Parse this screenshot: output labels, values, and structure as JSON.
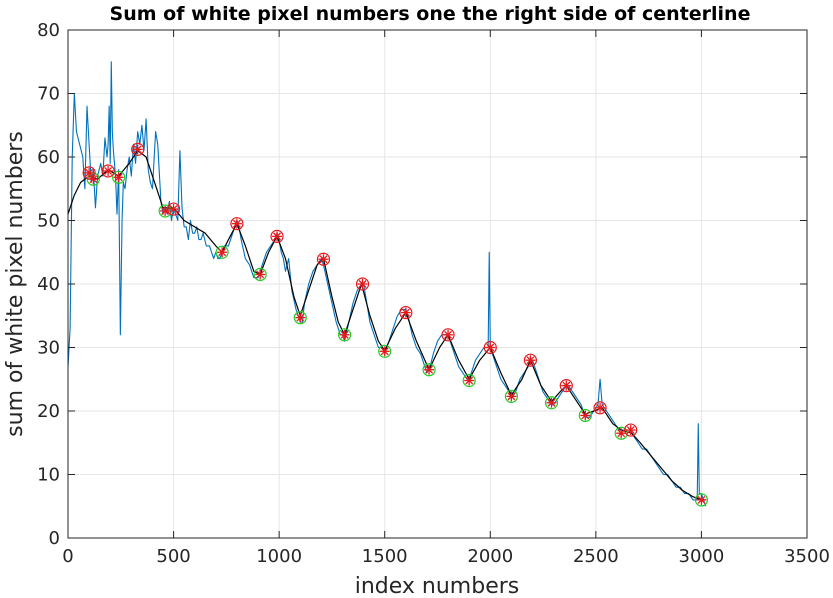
{
  "chart_data": {
    "type": "line",
    "title": "Sum of white pixel numbers one the right side of centerline",
    "xlabel": "index numbers",
    "ylabel": "sum of white pixel numbers",
    "xlim": [
      0,
      3500
    ],
    "ylim": [
      0,
      80
    ],
    "xticks": [
      0,
      500,
      1000,
      1500,
      2000,
      2500,
      3000,
      3500
    ],
    "yticks": [
      0,
      10,
      20,
      30,
      40,
      50,
      60,
      70,
      80
    ],
    "grid": true,
    "colors": {
      "raw": "#0072BD",
      "smooth": "#000000",
      "peak_circle": "#E41A1C",
      "peak_star": "#E41A1C",
      "valley_circle": "#22CC22",
      "valley_star": "#E41A1C"
    },
    "series": [
      {
        "role": "raw",
        "points": [
          [
            0,
            27
          ],
          [
            10,
            33
          ],
          [
            20,
            60
          ],
          [
            30,
            70
          ],
          [
            40,
            64
          ],
          [
            55,
            62
          ],
          [
            70,
            60
          ],
          [
            80,
            55
          ],
          [
            90,
            68
          ],
          [
            100,
            62
          ],
          [
            110,
            56
          ],
          [
            120,
            58
          ],
          [
            130,
            52
          ],
          [
            140,
            57
          ],
          [
            155,
            59
          ],
          [
            165,
            57
          ],
          [
            175,
            63
          ],
          [
            185,
            60
          ],
          [
            190,
            62
          ],
          [
            195,
            68
          ],
          [
            200,
            59
          ],
          [
            205,
            75
          ],
          [
            210,
            64
          ],
          [
            215,
            61
          ],
          [
            225,
            57
          ],
          [
            232,
            51
          ],
          [
            240,
            58
          ],
          [
            248,
            32
          ],
          [
            256,
            50
          ],
          [
            262,
            56
          ],
          [
            270,
            55
          ],
          [
            280,
            58
          ],
          [
            290,
            60
          ],
          [
            300,
            57
          ],
          [
            310,
            62
          ],
          [
            320,
            59
          ],
          [
            330,
            64
          ],
          [
            340,
            62
          ],
          [
            350,
            65
          ],
          [
            360,
            61
          ],
          [
            370,
            66
          ],
          [
            380,
            58
          ],
          [
            390,
            56
          ],
          [
            400,
            55
          ],
          [
            415,
            64
          ],
          [
            425,
            62
          ],
          [
            440,
            53
          ],
          [
            450,
            51
          ],
          [
            460,
            52
          ],
          [
            470,
            51
          ],
          [
            480,
            53
          ],
          [
            490,
            50
          ],
          [
            500,
            52
          ],
          [
            510,
            51
          ],
          [
            520,
            50
          ],
          [
            530,
            61
          ],
          [
            540,
            52
          ],
          [
            550,
            49
          ],
          [
            560,
            49
          ],
          [
            570,
            47
          ],
          [
            580,
            50
          ],
          [
            590,
            48
          ],
          [
            600,
            48
          ],
          [
            610,
            49
          ],
          [
            620,
            47
          ],
          [
            630,
            47
          ],
          [
            640,
            48
          ],
          [
            655,
            46
          ],
          [
            670,
            46
          ],
          [
            680,
            45
          ],
          [
            690,
            44
          ],
          [
            700,
            45
          ],
          [
            710,
            44
          ],
          [
            720,
            44
          ],
          [
            740,
            46
          ],
          [
            760,
            46
          ],
          [
            780,
            48
          ],
          [
            800,
            50
          ],
          [
            810,
            49
          ],
          [
            820,
            47
          ],
          [
            840,
            44
          ],
          [
            860,
            43
          ],
          [
            880,
            41
          ],
          [
            900,
            41
          ],
          [
            920,
            43
          ],
          [
            940,
            45
          ],
          [
            960,
            46
          ],
          [
            980,
            47
          ],
          [
            990,
            48
          ],
          [
            1000,
            47
          ],
          [
            1010,
            45
          ],
          [
            1020,
            44
          ],
          [
            1030,
            42
          ],
          [
            1045,
            44
          ],
          [
            1060,
            39
          ],
          [
            1080,
            36
          ],
          [
            1100,
            34
          ],
          [
            1110,
            34
          ],
          [
            1120,
            37
          ],
          [
            1140,
            40
          ],
          [
            1160,
            42
          ],
          [
            1180,
            43
          ],
          [
            1200,
            44
          ],
          [
            1210,
            43
          ],
          [
            1230,
            40
          ],
          [
            1250,
            37
          ],
          [
            1270,
            34
          ],
          [
            1290,
            32
          ],
          [
            1300,
            32
          ],
          [
            1310,
            31
          ],
          [
            1330,
            34
          ],
          [
            1350,
            37
          ],
          [
            1370,
            39
          ],
          [
            1390,
            40
          ],
          [
            1400,
            40
          ],
          [
            1410,
            38
          ],
          [
            1430,
            34
          ],
          [
            1450,
            32
          ],
          [
            1470,
            30
          ],
          [
            1490,
            30
          ],
          [
            1500,
            29
          ],
          [
            1520,
            31
          ],
          [
            1540,
            33
          ],
          [
            1560,
            35
          ],
          [
            1580,
            36
          ],
          [
            1600,
            36
          ],
          [
            1610,
            35
          ],
          [
            1630,
            32
          ],
          [
            1650,
            30
          ],
          [
            1670,
            29
          ],
          [
            1690,
            27
          ],
          [
            1700,
            26
          ],
          [
            1715,
            27
          ],
          [
            1730,
            29
          ],
          [
            1750,
            31
          ],
          [
            1770,
            32
          ],
          [
            1790,
            32
          ],
          [
            1800,
            32
          ],
          [
            1810,
            31
          ],
          [
            1830,
            29
          ],
          [
            1850,
            27
          ],
          [
            1870,
            26
          ],
          [
            1890,
            25
          ],
          [
            1900,
            25
          ],
          [
            1910,
            26
          ],
          [
            1930,
            28
          ],
          [
            1950,
            29
          ],
          [
            1970,
            30
          ],
          [
            1990,
            30
          ],
          [
            1995,
            45
          ],
          [
            2000,
            30
          ],
          [
            2010,
            29
          ],
          [
            2030,
            27
          ],
          [
            2050,
            25
          ],
          [
            2070,
            24
          ],
          [
            2090,
            23
          ],
          [
            2100,
            22
          ],
          [
            2120,
            23
          ],
          [
            2140,
            25
          ],
          [
            2160,
            26
          ],
          [
            2180,
            27
          ],
          [
            2190,
            28
          ],
          [
            2200,
            28
          ],
          [
            2210,
            27
          ],
          [
            2230,
            25
          ],
          [
            2250,
            23
          ],
          [
            2270,
            22
          ],
          [
            2290,
            21
          ],
          [
            2300,
            21
          ],
          [
            2320,
            22
          ],
          [
            2340,
            23
          ],
          [
            2360,
            24
          ],
          [
            2370,
            24
          ],
          [
            2390,
            23
          ],
          [
            2410,
            22
          ],
          [
            2430,
            21
          ],
          [
            2450,
            19
          ],
          [
            2470,
            19
          ],
          [
            2490,
            20
          ],
          [
            2510,
            21
          ],
          [
            2520,
            25
          ],
          [
            2530,
            21
          ],
          [
            2550,
            20
          ],
          [
            2570,
            19
          ],
          [
            2590,
            18
          ],
          [
            2610,
            17
          ],
          [
            2620,
            17
          ],
          [
            2640,
            17
          ],
          [
            2660,
            17
          ],
          [
            2680,
            16
          ],
          [
            2700,
            15
          ],
          [
            2720,
            14
          ],
          [
            2740,
            14
          ],
          [
            2760,
            13
          ],
          [
            2780,
            12
          ],
          [
            2800,
            11
          ],
          [
            2820,
            10
          ],
          [
            2840,
            10
          ],
          [
            2860,
            9
          ],
          [
            2880,
            8
          ],
          [
            2900,
            8
          ],
          [
            2920,
            7
          ],
          [
            2940,
            7
          ],
          [
            2960,
            6
          ],
          [
            2980,
            6
          ],
          [
            2985,
            18
          ],
          [
            2990,
            7
          ],
          [
            3000,
            7
          ],
          [
            3010,
            6
          ],
          [
            3020,
            5
          ]
        ]
      },
      {
        "role": "smooth",
        "points": [
          [
            0,
            51
          ],
          [
            30,
            54
          ],
          [
            60,
            56
          ],
          [
            100,
            57
          ],
          [
            140,
            56.5
          ],
          [
            190,
            58
          ],
          [
            240,
            57
          ],
          [
            290,
            59
          ],
          [
            330,
            61
          ],
          [
            370,
            60
          ],
          [
            410,
            56
          ],
          [
            450,
            52
          ],
          [
            500,
            52
          ],
          [
            550,
            50
          ],
          [
            600,
            49
          ],
          [
            650,
            48
          ],
          [
            700,
            46
          ],
          [
            730,
            45
          ],
          [
            760,
            47
          ],
          [
            800,
            49.5
          ],
          [
            840,
            46
          ],
          [
            880,
            42
          ],
          [
            910,
            41.5
          ],
          [
            950,
            45
          ],
          [
            990,
            47.5
          ],
          [
            1030,
            44
          ],
          [
            1070,
            38
          ],
          [
            1100,
            35
          ],
          [
            1140,
            39
          ],
          [
            1180,
            43
          ],
          [
            1210,
            44
          ],
          [
            1250,
            38
          ],
          [
            1280,
            34
          ],
          [
            1310,
            32
          ],
          [
            1350,
            36
          ],
          [
            1390,
            40
          ],
          [
            1430,
            35
          ],
          [
            1470,
            31
          ],
          [
            1500,
            29.5
          ],
          [
            1550,
            33
          ],
          [
            1600,
            35.5
          ],
          [
            1650,
            31
          ],
          [
            1710,
            26.5
          ],
          [
            1760,
            30
          ],
          [
            1800,
            32
          ],
          [
            1850,
            28
          ],
          [
            1900,
            25
          ],
          [
            1950,
            28
          ],
          [
            2000,
            30
          ],
          [
            2050,
            26
          ],
          [
            2100,
            22.5
          ],
          [
            2150,
            25
          ],
          [
            2190,
            28
          ],
          [
            2240,
            24
          ],
          [
            2290,
            21.5
          ],
          [
            2330,
            23
          ],
          [
            2360,
            24
          ],
          [
            2400,
            22
          ],
          [
            2450,
            19.5
          ],
          [
            2490,
            20
          ],
          [
            2530,
            20.5
          ],
          [
            2580,
            18
          ],
          [
            2620,
            17
          ],
          [
            2670,
            16.5
          ],
          [
            2710,
            15
          ],
          [
            2760,
            13
          ],
          [
            2810,
            11
          ],
          [
            2860,
            9
          ],
          [
            2910,
            7.5
          ],
          [
            2960,
            6.5
          ],
          [
            3000,
            6
          ],
          [
            3020,
            6
          ]
        ]
      }
    ],
    "peaks": [
      [
        100,
        57.5
      ],
      [
        190,
        57.8
      ],
      [
        330,
        61.2
      ],
      [
        500,
        51.8
      ],
      [
        800,
        49.5
      ],
      [
        990,
        47.5
      ],
      [
        1210,
        43.9
      ],
      [
        1395,
        40
      ],
      [
        1600,
        35.5
      ],
      [
        1800,
        32
      ],
      [
        2000,
        30
      ],
      [
        2190,
        28
      ],
      [
        2360,
        24
      ],
      [
        2520,
        20.5
      ],
      [
        2665,
        17
      ]
    ],
    "valleys": [
      [
        120,
        56.5
      ],
      [
        240,
        56.8
      ],
      [
        460,
        51.5
      ],
      [
        730,
        45
      ],
      [
        910,
        41.5
      ],
      [
        1100,
        34.7
      ],
      [
        1310,
        32
      ],
      [
        1500,
        29.4
      ],
      [
        1710,
        26.5
      ],
      [
        1900,
        24.8
      ],
      [
        2100,
        22.3
      ],
      [
        2290,
        21.3
      ],
      [
        2450,
        19.3
      ],
      [
        2620,
        16.5
      ],
      [
        3000,
        6
      ]
    ]
  }
}
